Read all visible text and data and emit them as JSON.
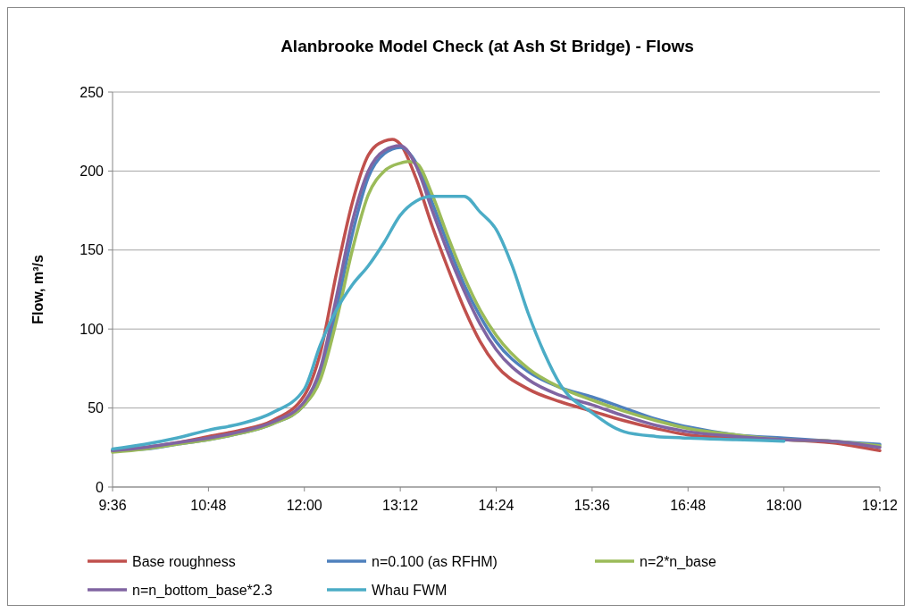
{
  "chart_data": {
    "type": "line",
    "title": "Alanbrooke Model Check (at Ash St Bridge) - Flows",
    "ylabel": "Flow, m³/s",
    "xlim": [
      9.6,
      19.2
    ],
    "xticks": [
      {
        "value": 9.6,
        "label": "9:36"
      },
      {
        "value": 10.8,
        "label": "10:48"
      },
      {
        "value": 12,
        "label": "12:00"
      },
      {
        "value": 13.2,
        "label": "13:12"
      },
      {
        "value": 14.4,
        "label": "14:24"
      },
      {
        "value": 15.6,
        "label": "15:36"
      },
      {
        "value": 16.8,
        "label": "16:48"
      },
      {
        "value": 18,
        "label": "18:00"
      },
      {
        "value": 19.2,
        "label": "19:12"
      }
    ],
    "ylim": [
      0,
      250
    ],
    "yticks": [
      0,
      50,
      100,
      150,
      200,
      250
    ],
    "grid": "y",
    "legend": "bottom",
    "marker": "none",
    "line_style": "solid",
    "series": [
      {
        "name": "Base roughness",
        "color": "#c0504d",
        "x": [
          9.6,
          10.0,
          10.4,
          10.8,
          11.2,
          11.6,
          12.0,
          12.2,
          12.4,
          12.6,
          12.8,
          13.0,
          13.1,
          13.2,
          13.4,
          13.6,
          13.8,
          14.0,
          14.2,
          14.4,
          14.8,
          15.2,
          15.6,
          16.0,
          16.4,
          16.8,
          17.4,
          18.0,
          18.6,
          19.2
        ],
        "values": [
          23,
          25,
          28,
          32,
          36,
          42,
          58,
          85,
          135,
          180,
          210,
          219,
          220,
          217,
          195,
          165,
          138,
          113,
          92,
          77,
          62,
          54,
          48,
          42,
          37,
          33,
          31,
          30,
          28,
          23
        ]
      },
      {
        "name": "n=0.100 (as RFHM)",
        "color": "#4f81bd",
        "x": [
          9.6,
          10.0,
          10.4,
          10.8,
          11.2,
          11.6,
          12.0,
          12.2,
          12.4,
          12.6,
          12.8,
          13.0,
          13.2,
          13.4,
          13.6,
          13.8,
          14.0,
          14.2,
          14.4,
          14.8,
          15.2,
          15.6,
          16.0,
          16.4,
          16.8,
          17.4,
          18.0,
          18.6,
          19.2
        ],
        "values": [
          23,
          24,
          27,
          30,
          34,
          40,
          52,
          70,
          112,
          160,
          196,
          211,
          215,
          205,
          180,
          153,
          128,
          108,
          92,
          73,
          63,
          57,
          50,
          43,
          38,
          33,
          31,
          29,
          27
        ]
      },
      {
        "name": "n=2*n_base",
        "color": "#9bbb59",
        "x": [
          9.6,
          10.0,
          10.4,
          10.8,
          11.2,
          11.6,
          12.0,
          12.2,
          12.4,
          12.6,
          12.8,
          13.0,
          13.2,
          13.3,
          13.4,
          13.6,
          13.8,
          14.0,
          14.2,
          14.4,
          14.8,
          15.2,
          15.6,
          16.0,
          16.4,
          16.8,
          17.4,
          18.0,
          18.6,
          19.2
        ],
        "values": [
          22,
          24,
          27,
          30,
          34,
          40,
          52,
          68,
          105,
          150,
          185,
          200,
          205,
          206,
          205,
          185,
          158,
          133,
          112,
          96,
          75,
          63,
          55,
          48,
          42,
          37,
          33,
          30,
          29,
          26
        ]
      },
      {
        "name": "n=n_bottom_base*2.3",
        "color": "#8064a2",
        "x": [
          9.6,
          10.0,
          10.4,
          10.8,
          11.2,
          11.6,
          12.0,
          12.2,
          12.4,
          12.6,
          12.8,
          13.0,
          13.2,
          13.4,
          13.6,
          13.8,
          14.0,
          14.2,
          14.4,
          14.8,
          15.2,
          15.6,
          16.0,
          16.4,
          16.8,
          17.4,
          18.0,
          18.6,
          19.2
        ],
        "values": [
          23,
          25,
          28,
          31,
          35,
          41,
          54,
          75,
          120,
          168,
          200,
          213,
          216,
          203,
          175,
          148,
          124,
          103,
          87,
          68,
          58,
          52,
          45,
          39,
          35,
          32,
          30,
          29,
          25
        ]
      },
      {
        "name": "Whau FWM",
        "color": "#4bacc6",
        "x": [
          9.6,
          10.0,
          10.4,
          10.8,
          11.2,
          11.6,
          12.0,
          12.2,
          12.4,
          12.6,
          12.8,
          13.0,
          13.2,
          13.4,
          13.6,
          13.8,
          14.0,
          14.2,
          14.4,
          14.6,
          14.8,
          15.0,
          15.2,
          15.6,
          16.0,
          16.4,
          16.8,
          17.4,
          18.0
        ],
        "values": [
          24,
          27,
          31,
          36,
          40,
          47,
          62,
          90,
          112,
          128,
          140,
          155,
          172,
          181,
          184,
          184,
          184,
          174,
          163,
          140,
          110,
          85,
          65,
          47,
          35,
          32,
          31,
          30,
          29
        ]
      }
    ]
  }
}
